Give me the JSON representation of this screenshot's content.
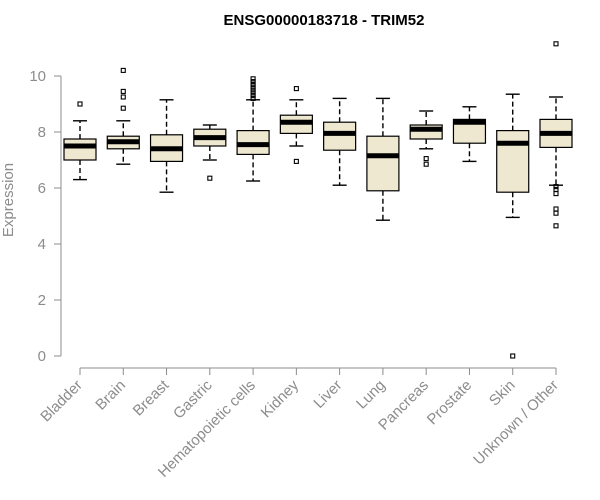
{
  "chart_data": {
    "type": "boxplot",
    "title": "ENSG00000183718 - TRIM52",
    "xlabel": "",
    "ylabel": "Expression",
    "ylim": [
      0,
      11.3
    ],
    "yticks": [
      0,
      2,
      4,
      6,
      8,
      10
    ],
    "colors": {
      "box_fill": "#efe8d0",
      "box_stroke": "#000000",
      "median": "#000000",
      "axis": "#8c8c8c"
    },
    "grid": false,
    "legend": "none",
    "categories": [
      "Bladder",
      "Brain",
      "Breast",
      "Gastric",
      "Hematopoietic cells",
      "Kidney",
      "Liver",
      "Lung",
      "Pancreas",
      "Prostate",
      "Skin",
      "Unknown / Other"
    ],
    "boxes": [
      {
        "category": "Bladder",
        "whisker_low": 6.3,
        "q1": 7.0,
        "median": 7.5,
        "q3": 7.75,
        "whisker_high": 8.4,
        "outliers": [
          9.0
        ]
      },
      {
        "category": "Brain",
        "whisker_low": 6.85,
        "q1": 7.4,
        "median": 7.65,
        "q3": 7.85,
        "whisker_high": 8.4,
        "outliers": [
          8.85,
          9.25,
          9.45,
          10.2
        ]
      },
      {
        "category": "Breast",
        "whisker_low": 5.85,
        "q1": 6.95,
        "median": 7.4,
        "q3": 7.9,
        "whisker_high": 9.15,
        "outliers": []
      },
      {
        "category": "Gastric",
        "whisker_low": 7.0,
        "q1": 7.5,
        "median": 7.8,
        "q3": 8.1,
        "whisker_high": 8.25,
        "outliers": [
          6.35
        ]
      },
      {
        "category": "Hematopoietic cells",
        "whisker_low": 6.25,
        "q1": 7.2,
        "median": 7.55,
        "q3": 8.05,
        "whisker_high": 9.15,
        "outliers": [
          9.2,
          9.3,
          9.4,
          9.5,
          9.6,
          9.7,
          9.8,
          9.9
        ]
      },
      {
        "category": "Kidney",
        "whisker_low": 7.5,
        "q1": 7.95,
        "median": 8.35,
        "q3": 8.6,
        "whisker_high": 9.15,
        "outliers": [
          6.95,
          9.55
        ]
      },
      {
        "category": "Liver",
        "whisker_low": 6.1,
        "q1": 7.35,
        "median": 7.95,
        "q3": 8.35,
        "whisker_high": 9.2,
        "outliers": []
      },
      {
        "category": "Lung",
        "whisker_low": 4.85,
        "q1": 5.9,
        "median": 7.15,
        "q3": 7.85,
        "whisker_high": 9.2,
        "outliers": []
      },
      {
        "category": "Pancreas",
        "whisker_low": 7.4,
        "q1": 7.75,
        "median": 8.1,
        "q3": 8.25,
        "whisker_high": 8.75,
        "outliers": [
          6.85,
          7.05
        ]
      },
      {
        "category": "Prostate",
        "whisker_low": 6.95,
        "q1": 7.6,
        "median": 8.35,
        "q3": 8.45,
        "whisker_high": 8.9,
        "outliers": []
      },
      {
        "category": "Skin",
        "whisker_low": 4.95,
        "q1": 5.85,
        "median": 7.6,
        "q3": 8.05,
        "whisker_high": 9.35,
        "outliers": [
          0.0
        ]
      },
      {
        "category": "Unknown / Other",
        "whisker_low": 6.1,
        "q1": 7.45,
        "median": 7.95,
        "q3": 8.45,
        "whisker_high": 9.25,
        "outliers": [
          4.65,
          5.1,
          5.25,
          5.8,
          5.95,
          6.05,
          11.15
        ]
      }
    ]
  }
}
